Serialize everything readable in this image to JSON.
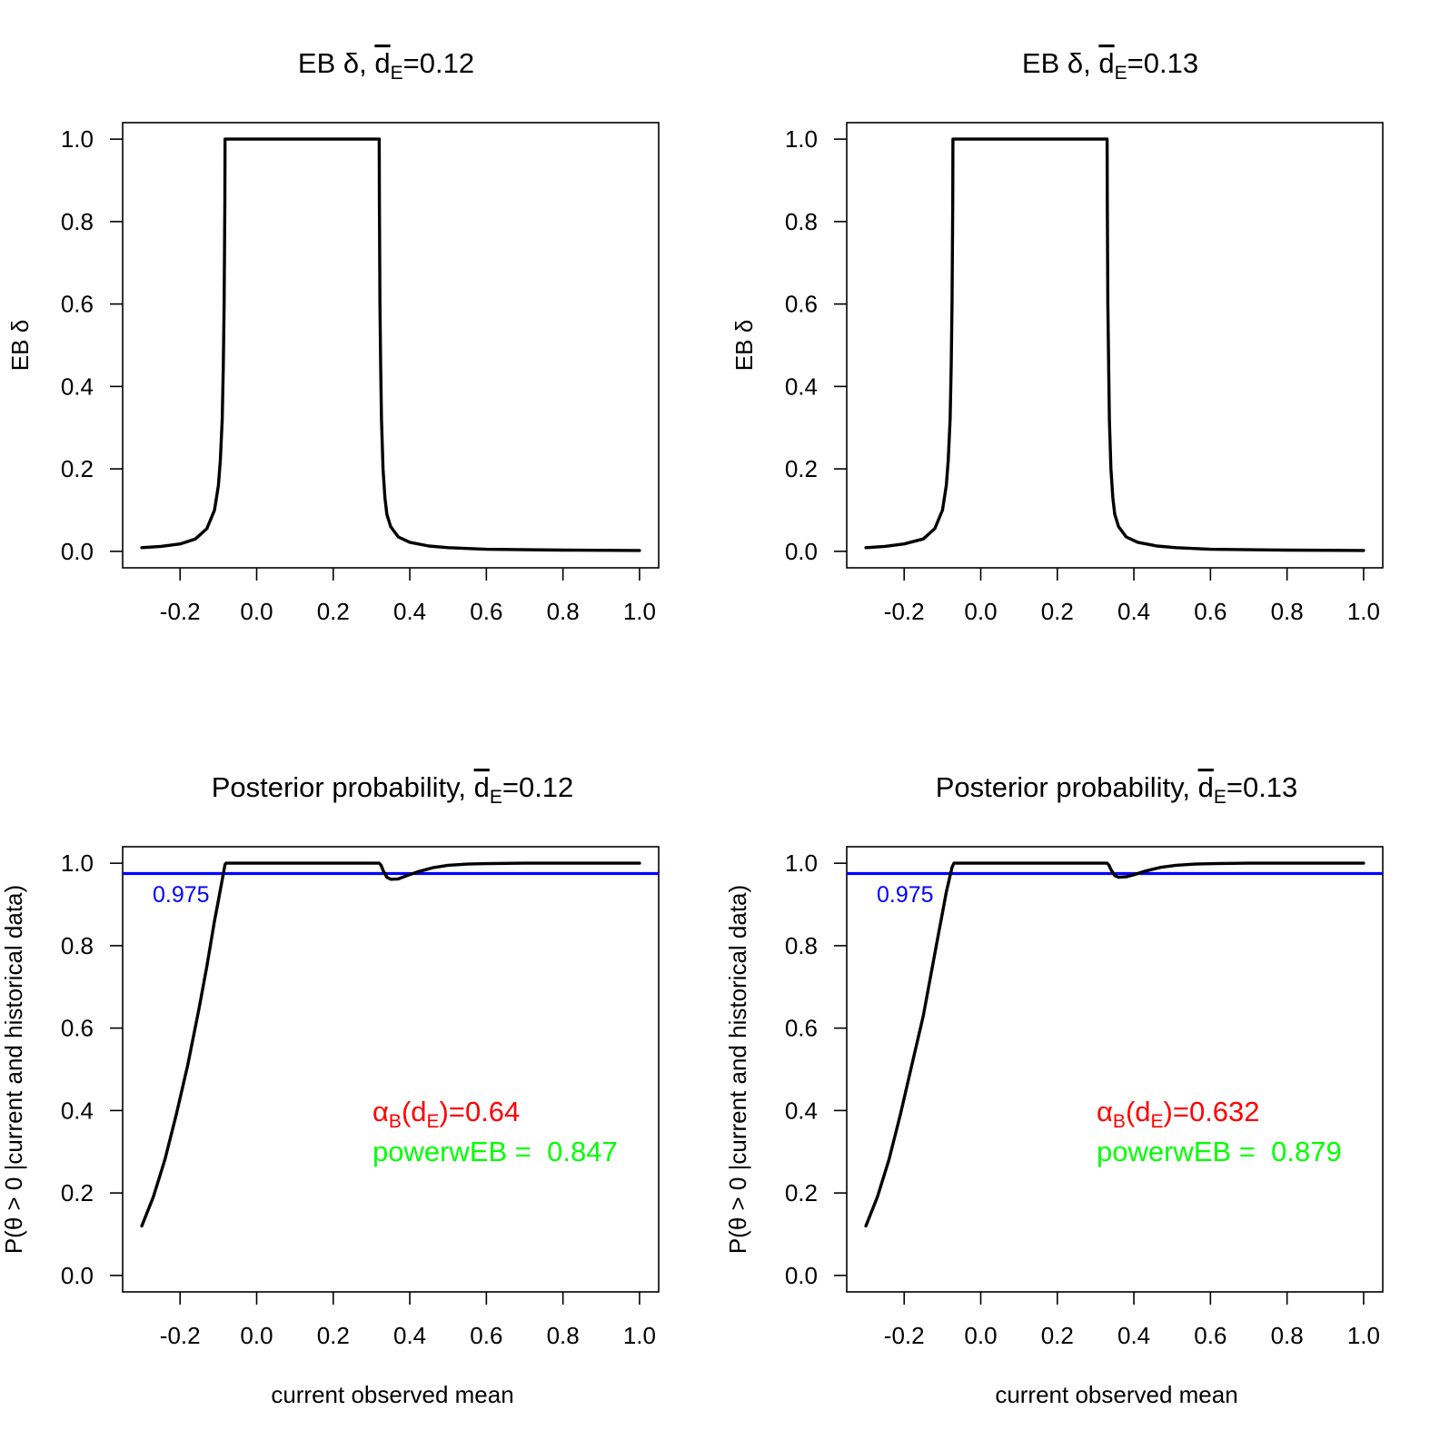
{
  "figure": {
    "panels": [
      {
        "title": {
          "prefix": "EB δ, ",
          "d_label": "d",
          "d_sub": "E",
          "suffix": "=0.12"
        },
        "ylabel": "EB δ",
        "xlabel": "",
        "annotations": {}
      },
      {
        "title": {
          "prefix": "EB δ, ",
          "d_label": "d",
          "d_sub": "E",
          "suffix": "=0.13"
        },
        "ylabel": "EB δ",
        "xlabel": "",
        "annotations": {}
      },
      {
        "title": {
          "prefix": "Posterior probability, ",
          "d_label": "d",
          "d_sub": "E",
          "suffix": "=0.12"
        },
        "ylabel": "P(θ > 0 |current and historical data)",
        "xlabel": "current observed mean",
        "annotations": {
          "threshold_label": "0.975",
          "alpha": {
            "greek": "α",
            "sub1": "B",
            "mid": "(d",
            "sub2": "E",
            "end": ")=0.64"
          },
          "power": "powerwEB =  0.847"
        }
      },
      {
        "title": {
          "prefix": "Posterior probability, ",
          "d_label": "d",
          "d_sub": "E",
          "suffix": "=0.13"
        },
        "ylabel": "P(θ > 0 |current and historical data)",
        "xlabel": "current observed mean",
        "annotations": {
          "threshold_label": "0.975",
          "alpha": {
            "greek": "α",
            "sub1": "B",
            "mid": "(d",
            "sub2": "E",
            "end": ")=0.632"
          },
          "power": "powerwEB =  0.879"
        }
      }
    ],
    "colors": {
      "curve": "#000000",
      "threshold": "#0000ff",
      "alpha_text": "#ff0000",
      "power_text": "#00ff00",
      "axis": "#000000"
    }
  },
  "chart_data": [
    {
      "type": "line",
      "title": "EB δ, d_E=0.12",
      "xlabel": "",
      "ylabel": "EB δ",
      "xlim": [
        -0.35,
        1.05
      ],
      "ylim": [
        -0.04,
        1.04
      ],
      "xticks": [
        -0.2,
        0.0,
        0.2,
        0.4,
        0.6,
        0.8,
        1.0
      ],
      "xtick_labels": [
        "-0.2",
        "0.0",
        "0.2",
        "0.4",
        "0.6",
        "0.8",
        "1.0"
      ],
      "yticks": [
        0.0,
        0.2,
        0.4,
        0.6,
        0.8,
        1.0
      ],
      "ytick_labels": [
        "0.0",
        "0.2",
        "0.4",
        "0.6",
        "0.8",
        "1.0"
      ],
      "series": [
        {
          "name": "EB delta",
          "x": [
            -0.3,
            -0.25,
            -0.2,
            -0.16,
            -0.13,
            -0.11,
            -0.1,
            -0.095,
            -0.09,
            -0.087,
            -0.085,
            -0.083,
            -0.0825,
            0.32,
            0.3205,
            0.322,
            0.324,
            0.326,
            0.33,
            0.335,
            0.34,
            0.35,
            0.37,
            0.4,
            0.45,
            0.5,
            0.6,
            0.8,
            1.0
          ],
          "y": [
            0.009,
            0.012,
            0.018,
            0.03,
            0.055,
            0.1,
            0.16,
            0.22,
            0.32,
            0.45,
            0.6,
            0.85,
            1.0,
            1.0,
            0.85,
            0.6,
            0.45,
            0.32,
            0.2,
            0.13,
            0.09,
            0.06,
            0.035,
            0.022,
            0.013,
            0.009,
            0.005,
            0.003,
            0.002
          ]
        }
      ]
    },
    {
      "type": "line",
      "title": "EB δ, d_E=0.13",
      "xlabel": "",
      "ylabel": "EB δ",
      "xlim": [
        -0.35,
        1.05
      ],
      "ylim": [
        -0.04,
        1.04
      ],
      "xticks": [
        -0.2,
        0.0,
        0.2,
        0.4,
        0.6,
        0.8,
        1.0
      ],
      "xtick_labels": [
        "-0.2",
        "0.0",
        "0.2",
        "0.4",
        "0.6",
        "0.8",
        "1.0"
      ],
      "yticks": [
        0.0,
        0.2,
        0.4,
        0.6,
        0.8,
        1.0
      ],
      "ytick_labels": [
        "0.0",
        "0.2",
        "0.4",
        "0.6",
        "0.8",
        "1.0"
      ],
      "series": [
        {
          "name": "EB delta",
          "x": [
            -0.3,
            -0.25,
            -0.2,
            -0.15,
            -0.12,
            -0.1,
            -0.09,
            -0.085,
            -0.08,
            -0.077,
            -0.075,
            -0.073,
            -0.0725,
            0.33,
            0.3305,
            0.332,
            0.334,
            0.336,
            0.34,
            0.345,
            0.35,
            0.36,
            0.38,
            0.41,
            0.46,
            0.51,
            0.6,
            0.8,
            1.0
          ],
          "y": [
            0.009,
            0.012,
            0.018,
            0.03,
            0.055,
            0.1,
            0.16,
            0.22,
            0.32,
            0.45,
            0.6,
            0.85,
            1.0,
            1.0,
            0.85,
            0.6,
            0.45,
            0.32,
            0.2,
            0.13,
            0.09,
            0.06,
            0.035,
            0.022,
            0.013,
            0.009,
            0.005,
            0.003,
            0.002
          ]
        }
      ]
    },
    {
      "type": "line",
      "title": "Posterior probability, d_E=0.12",
      "xlabel": "current observed mean",
      "ylabel": "P(θ > 0 |current and historical data)",
      "xlim": [
        -0.35,
        1.05
      ],
      "ylim": [
        -0.04,
        1.04
      ],
      "xticks": [
        -0.2,
        0.0,
        0.2,
        0.4,
        0.6,
        0.8,
        1.0
      ],
      "xtick_labels": [
        "-0.2",
        "0.0",
        "0.2",
        "0.4",
        "0.6",
        "0.8",
        "1.0"
      ],
      "yticks": [
        0.0,
        0.2,
        0.4,
        0.6,
        0.8,
        1.0
      ],
      "ytick_labels": [
        "0.0",
        "0.2",
        "0.4",
        "0.6",
        "0.8",
        "1.0"
      ],
      "hline": 0.975,
      "series": [
        {
          "name": "posterior probability",
          "x": [
            -0.3,
            -0.27,
            -0.24,
            -0.21,
            -0.18,
            -0.15,
            -0.13,
            -0.11,
            -0.1,
            -0.09,
            -0.085,
            -0.0825,
            -0.08,
            0.32,
            0.325,
            0.33,
            0.34,
            0.35,
            0.37,
            0.39,
            0.42,
            0.46,
            0.5,
            0.55,
            0.6,
            0.7,
            0.8,
            1.0
          ],
          "y": [
            0.12,
            0.19,
            0.28,
            0.39,
            0.51,
            0.65,
            0.75,
            0.86,
            0.91,
            0.96,
            0.985,
            0.997,
            1.0,
            1.0,
            0.995,
            0.983,
            0.966,
            0.961,
            0.962,
            0.969,
            0.979,
            0.989,
            0.995,
            0.998,
            0.999,
            1.0,
            1.0,
            1.0
          ]
        }
      ],
      "annotations": {
        "alpha_B": "α_B(d_E)=0.64",
        "power": "powerwEB =  0.847",
        "threshold_label": "0.975"
      }
    },
    {
      "type": "line",
      "title": "Posterior probability, d_E=0.13",
      "xlabel": "current observed mean",
      "ylabel": "P(θ > 0 |current and historical data)",
      "xlim": [
        -0.35,
        1.05
      ],
      "ylim": [
        -0.04,
        1.04
      ],
      "xticks": [
        -0.2,
        0.0,
        0.2,
        0.4,
        0.6,
        0.8,
        1.0
      ],
      "xtick_labels": [
        "-0.2",
        "0.0",
        "0.2",
        "0.4",
        "0.6",
        "0.8",
        "1.0"
      ],
      "yticks": [
        0.0,
        0.2,
        0.4,
        0.6,
        0.8,
        1.0
      ],
      "ytick_labels": [
        "0.0",
        "0.2",
        "0.4",
        "0.6",
        "0.8",
        "1.0"
      ],
      "hline": 0.975,
      "series": [
        {
          "name": "posterior probability",
          "x": [
            -0.3,
            -0.27,
            -0.24,
            -0.21,
            -0.18,
            -0.15,
            -0.13,
            -0.11,
            -0.1,
            -0.09,
            -0.08,
            -0.075,
            -0.07,
            0.33,
            0.335,
            0.34,
            0.35,
            0.36,
            0.38,
            0.4,
            0.43,
            0.47,
            0.51,
            0.56,
            0.61,
            0.7,
            0.8,
            1.0
          ],
          "y": [
            0.12,
            0.19,
            0.28,
            0.39,
            0.51,
            0.63,
            0.73,
            0.83,
            0.88,
            0.93,
            0.97,
            0.99,
            1.0,
            1.0,
            0.995,
            0.985,
            0.97,
            0.966,
            0.967,
            0.972,
            0.981,
            0.99,
            0.995,
            0.998,
            0.999,
            1.0,
            1.0,
            1.0
          ]
        }
      ],
      "annotations": {
        "alpha_B": "α_B(d_E)=0.632",
        "power": "powerwEB =  0.879",
        "threshold_label": "0.975"
      }
    }
  ]
}
